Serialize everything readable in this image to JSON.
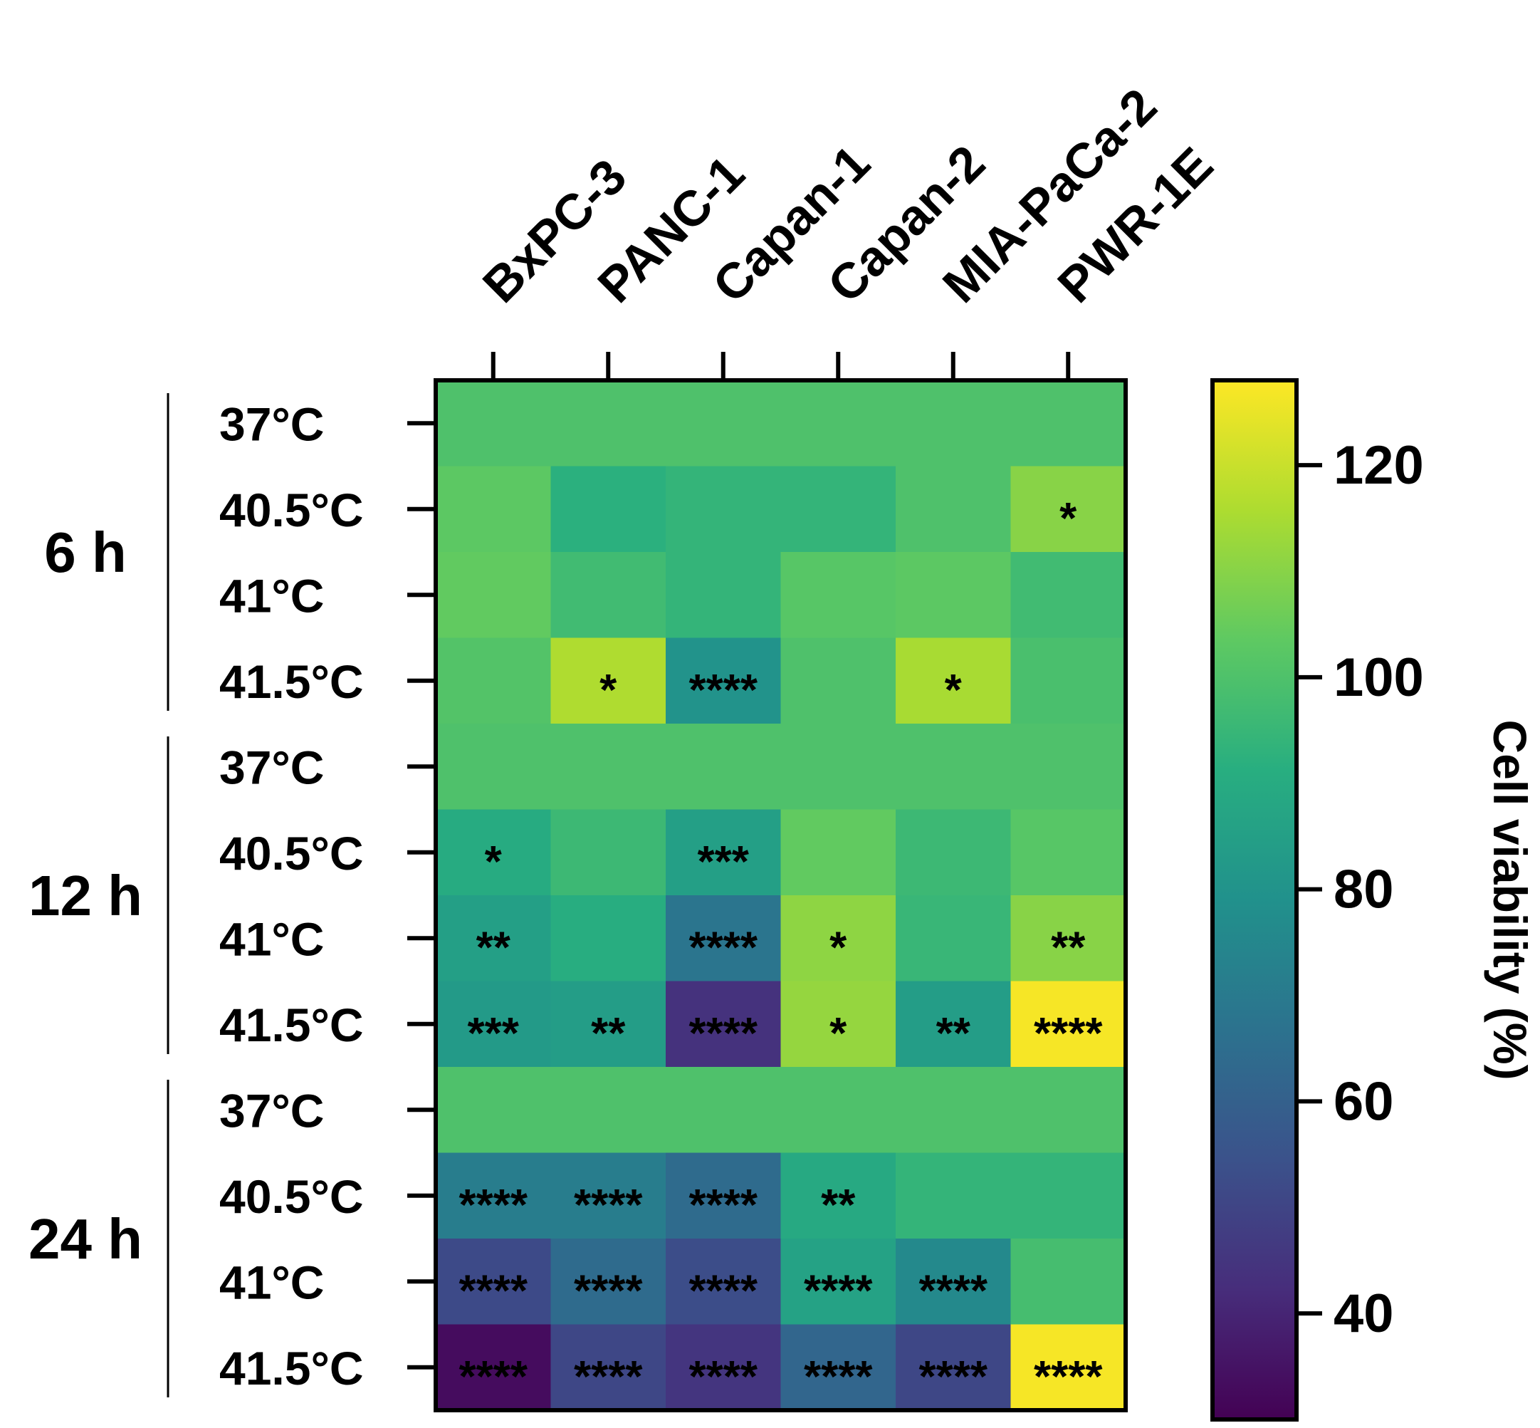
{
  "chart_data": {
    "type": "heatmap",
    "title": "",
    "columns": [
      "BxPC-3",
      "PANC-1",
      "Capan-1",
      "Capan-2",
      "MIA-PaCa-2",
      "PWR-1E"
    ],
    "groups": [
      {
        "label": "6 h",
        "rows": [
          "37°C",
          "40.5°C",
          "41°C",
          "41.5°C"
        ]
      },
      {
        "label": "12 h",
        "rows": [
          "37°C",
          "40.5°C",
          "41°C",
          "41.5°C"
        ]
      },
      {
        "label": "24 h",
        "rows": [
          "37°C",
          "40.5°C",
          "41°C",
          "41.5°C"
        ]
      }
    ],
    "values": [
      [
        100,
        100,
        100,
        100,
        100,
        100
      ],
      [
        103,
        92,
        94,
        94,
        100,
        110
      ],
      [
        104,
        97,
        94,
        102,
        103,
        97
      ],
      [
        101,
        116,
        80,
        100,
        115,
        99
      ],
      [
        100,
        100,
        100,
        100,
        100,
        100
      ],
      [
        90,
        96,
        85,
        104,
        96,
        102
      ],
      [
        85,
        91,
        68,
        111,
        95,
        110
      ],
      [
        83,
        84,
        44,
        112,
        84,
        127
      ],
      [
        100,
        100,
        100,
        100,
        100,
        100
      ],
      [
        71,
        71,
        64,
        89,
        94,
        94
      ],
      [
        52,
        64,
        53,
        86,
        76,
        98
      ],
      [
        33,
        51,
        45,
        62,
        51,
        127
      ]
    ],
    "significance": [
      [
        "",
        "",
        "",
        "",
        "",
        ""
      ],
      [
        "",
        "",
        "",
        "",
        "",
        "*"
      ],
      [
        "",
        "",
        "",
        "",
        "",
        ""
      ],
      [
        "",
        "*",
        "****",
        "",
        "*",
        ""
      ],
      [
        "",
        "",
        "",
        "",
        "",
        ""
      ],
      [
        "*",
        "",
        "***",
        "",
        "",
        ""
      ],
      [
        "**",
        "",
        "****",
        "*",
        "",
        "**"
      ],
      [
        "***",
        "**",
        "****",
        "*",
        "**",
        "****"
      ],
      [
        "",
        "",
        "",
        "",
        "",
        ""
      ],
      [
        "****",
        "****",
        "****",
        "**",
        "",
        ""
      ],
      [
        "****",
        "****",
        "****",
        "****",
        "****",
        ""
      ],
      [
        "****",
        "****",
        "****",
        "****",
        "****",
        "****"
      ]
    ],
    "colorbar": {
      "label": "Cell viability (%)",
      "range": [
        30,
        128
      ],
      "ticks": [
        40,
        60,
        80,
        100,
        120
      ],
      "colormap": "viridis"
    }
  }
}
